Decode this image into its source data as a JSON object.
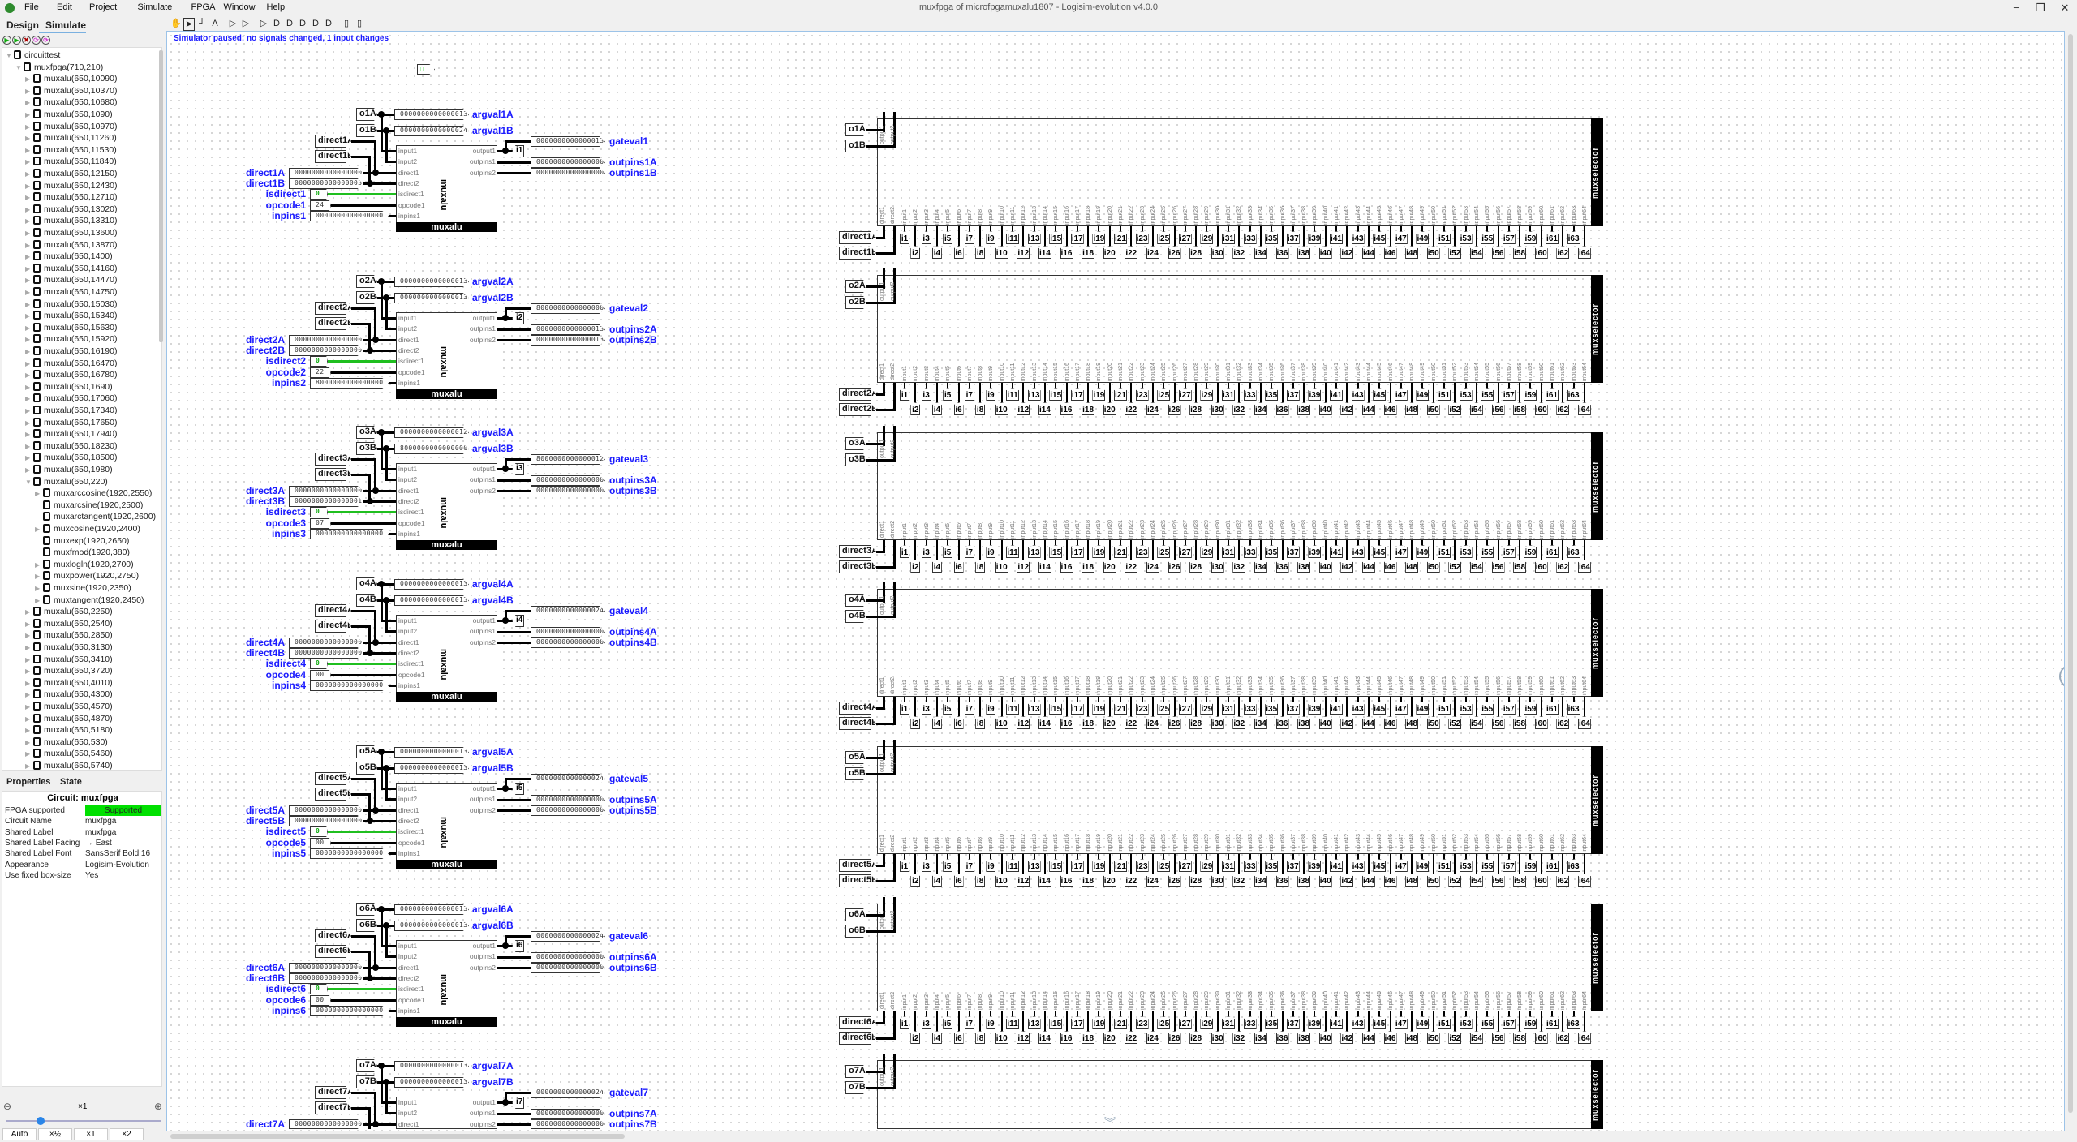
{
  "window": {
    "title": "muxfpga of microfpgamuxalu1807 - Logisim-evolution v4.0.0",
    "minimize": "−",
    "maximize": "❐",
    "close": "✕"
  },
  "menu": [
    "File",
    "Edit",
    "Project",
    "Simulate",
    "FPGA",
    "Window",
    "Help"
  ],
  "left_tabs": {
    "design": "Design",
    "simulate": "Simulate"
  },
  "sim_controls": [
    "play-icon",
    "step-icon",
    "reset-icon",
    "tick-icon",
    "tick-half-icon"
  ],
  "toolbar_tools": [
    "hand-icon",
    "select-icon",
    "wire-icon",
    "text-icon",
    "input-pin-icon",
    "output-pin-icon",
    "buffer-icon",
    "and-gate-icon",
    "or-gate-icon",
    "xor-gate-icon",
    "nand-gate-icon",
    "nor-gate-icon",
    "subcircuit-icon",
    "appearance-icon"
  ],
  "tree": {
    "root": "circuittest",
    "top": "muxfpga(710,210)",
    "items_before": [
      "muxalu(650,10090)",
      "muxalu(650,10370)",
      "muxalu(650,10680)",
      "muxalu(650,1090)",
      "muxalu(650,10970)",
      "muxalu(650,11260)",
      "muxalu(650,11530)",
      "muxalu(650,11840)",
      "muxalu(650,12150)",
      "muxalu(650,12430)",
      "muxalu(650,12710)",
      "muxalu(650,13020)",
      "muxalu(650,13310)",
      "muxalu(650,13600)",
      "muxalu(650,13870)",
      "muxalu(650,1400)",
      "muxalu(650,14160)",
      "muxalu(650,14470)",
      "muxalu(650,14750)",
      "muxalu(650,15030)",
      "muxalu(650,15340)",
      "muxalu(650,15630)",
      "muxalu(650,15920)",
      "muxalu(650,16190)",
      "muxalu(650,16470)",
      "muxalu(650,16780)",
      "muxalu(650,1690)",
      "muxalu(650,17060)",
      "muxalu(650,17340)",
      "muxalu(650,17650)",
      "muxalu(650,17940)",
      "muxalu(650,18230)",
      "muxalu(650,18500)",
      "muxalu(650,1980)"
    ],
    "expanded": "muxalu(650,220)",
    "children": [
      {
        "label": "muxarccosine(1920,2550)",
        "expandable": true
      },
      {
        "label": "muxarcsine(1920,2500)",
        "expandable": false
      },
      {
        "label": "muxarctangent(1920,2600)",
        "expandable": false
      },
      {
        "label": "muxcosine(1920,2400)",
        "expandable": true
      },
      {
        "label": "muxexp(1920,2650)",
        "expandable": false
      },
      {
        "label": "muxfmod(1920,380)",
        "expandable": false
      },
      {
        "label": "muxlogln(1920,2700)",
        "expandable": true
      },
      {
        "label": "muxpower(1920,2750)",
        "expandable": true
      },
      {
        "label": "muxsine(1920,2350)",
        "expandable": true
      },
      {
        "label": "muxtangent(1920,2450)",
        "expandable": true
      }
    ],
    "items_after": [
      "muxalu(650,2250)",
      "muxalu(650,2540)",
      "muxalu(650,2850)",
      "muxalu(650,3130)",
      "muxalu(650,3410)",
      "muxalu(650,3720)",
      "muxalu(650,4010)",
      "muxalu(650,4300)",
      "muxalu(650,4570)",
      "muxalu(650,4870)",
      "muxalu(650,5180)",
      "muxalu(650,530)",
      "muxalu(650,5460)",
      "muxalu(650,5740)"
    ]
  },
  "properties": {
    "tabs": {
      "properties": "Properties",
      "state": "State"
    },
    "title": "Circuit: muxfpga",
    "rows": [
      {
        "key": "FPGA supported",
        "value": "Supported",
        "status": "ok"
      },
      {
        "key": "Circuit Name",
        "value": "muxfpga"
      },
      {
        "key": "Shared Label",
        "value": "muxfpga"
      },
      {
        "key": "Shared Label Facing",
        "value": "→ East"
      },
      {
        "key": "Shared Label Font",
        "value": "SansSerif Bold 16"
      },
      {
        "key": "Appearance",
        "value": "Logisim-Evolution"
      },
      {
        "key": "Use fixed box-size",
        "value": "Yes"
      }
    ],
    "supported_color": "#00e000"
  },
  "zoom": {
    "level": "×1",
    "slider_fraction": 0.22,
    "buttons": [
      "Auto",
      "×½",
      "×1",
      "×2"
    ]
  },
  "status": "Simulator paused: no signals changed, 1 input changes",
  "muxalu": {
    "title": "muxalu",
    "ports_left": [
      "input1",
      "input2",
      "direct1",
      "direct2",
      "isdirect1",
      "opcode1",
      "inpins1"
    ],
    "ports_right": [
      "output1",
      "outpins1",
      "outpins2"
    ],
    "blocks": [
      {
        "n": 1,
        "argA": "0000000000000013",
        "argB": "0000000000000024",
        "gate": "0000000000000013",
        "outA": "0000000000000000",
        "outB": "0000000000000000",
        "dirA": "0000000000000000",
        "dirB": "0000000000000003",
        "isdirect": "0",
        "opcode": "24",
        "inpins": "0000000000000000"
      },
      {
        "n": 2,
        "argA": "0000000000000013",
        "argB": "0000000000000013",
        "gate": "8000000000000000",
        "outA": "0000000000000013",
        "outB": "0000000000000013",
        "dirA": "0000000000000000",
        "dirB": "0000000000000000",
        "isdirect": "0",
        "opcode": "22",
        "inpins": "8000000000000000"
      },
      {
        "n": 3,
        "argA": "0000000000000012",
        "argB": "8000000000000000",
        "gate": "8000000000000012",
        "outA": "0000000000000000",
        "outB": "0000000000000000",
        "dirA": "0000000000000000",
        "dirB": "0000000000000001",
        "isdirect": "0",
        "opcode": "07",
        "inpins": "0000000000000000"
      },
      {
        "n": 4,
        "argA": "0000000000000013",
        "argB": "0000000000000013",
        "gate": "0000000000000024",
        "outA": "0000000000000000",
        "outB": "0000000000000000",
        "dirA": "0000000000000000",
        "dirB": "0000000000000000",
        "isdirect": "0",
        "opcode": "00",
        "inpins": "0000000000000000"
      },
      {
        "n": 5,
        "argA": "0000000000000013",
        "argB": "0000000000000013",
        "gate": "0000000000000024",
        "outA": "0000000000000000",
        "outB": "0000000000000000",
        "dirA": "0000000000000000",
        "dirB": "0000000000000000",
        "isdirect": "0",
        "opcode": "00",
        "inpins": "0000000000000000"
      },
      {
        "n": 6,
        "argA": "0000000000000013",
        "argB": "0000000000000013",
        "gate": "0000000000000024",
        "outA": "0000000000000000",
        "outB": "0000000000000000",
        "dirA": "0000000000000000",
        "dirB": "0000000000000000",
        "isdirect": "0",
        "opcode": "00",
        "inpins": "0000000000000000"
      },
      {
        "n": 7,
        "argA": "0000000000000013",
        "argB": "0000000000000013",
        "gate": "0000000000000024",
        "outA": "0000000000000000",
        "outB": "0000000000000000",
        "dirA": "0000000000000000",
        "dirB": "0000000000000000",
        "isdirect": "0",
        "opcode": "00",
        "inpins": "0000000000000000"
      }
    ]
  },
  "muxselector": {
    "title": "muxselector",
    "out_ports": [
      "output1",
      "output2"
    ],
    "count": 7,
    "inputs": 64
  },
  "colors": {
    "label_blue": "#1a1aff",
    "active_wire": "#1fbf1f",
    "supported": "#00e000"
  }
}
